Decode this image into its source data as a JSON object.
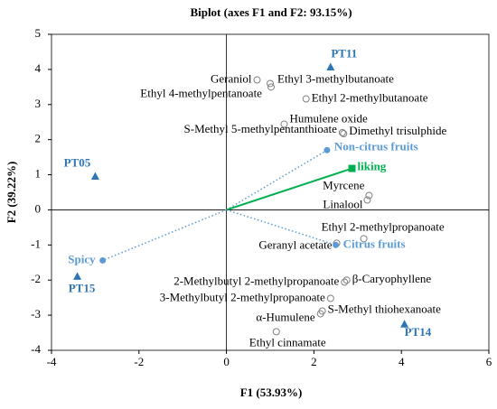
{
  "chart_data": {
    "type": "scatter",
    "title": "Biplot (axes F1 and F2: 93.15%)",
    "x_label": "F1 (53.93%)",
    "y_label": "F2 (39.22%)",
    "xlim": [
      -4,
      6
    ],
    "ylim": [
      -4,
      5
    ],
    "xticks": [
      -4,
      -2,
      0,
      2,
      4,
      6
    ],
    "yticks": [
      -4,
      -3,
      -2,
      -1,
      0,
      1,
      2,
      3,
      4,
      5
    ],
    "series": [
      {
        "marker": "open-circle",
        "color": "#808080",
        "label_color": "#000000",
        "labels": [
          "Geraniol",
          "Ethyl 3-methylbutanoate",
          "Ethyl 4-methylpentanoate",
          "Ethyl 2-methylbutanoate",
          "Humulene oxide",
          "S-Methyl 5-methylpentanthioate",
          "Dimethyl trisulphide",
          "Myrcene",
          "Linalool",
          "Ethyl 2-methylpropanoate",
          "Geranyl acetate",
          "2-Methylbutyl 2-methylpropanoate",
          "β-Caryophyllene",
          "3-Methylbutyl 2-methylpropanoate",
          "α-Humulene",
          "S-Methyl thiohexanoate",
          "Ethyl cinnamate"
        ],
        "x": [
          0.7,
          1.0,
          1.02,
          1.82,
          1.32,
          2.65,
          2.68,
          3.26,
          3.22,
          3.14,
          2.52,
          2.7,
          2.75,
          2.38,
          2.15,
          2.19,
          1.14
        ],
        "y": [
          3.7,
          3.6,
          3.5,
          3.16,
          2.44,
          2.2,
          2.17,
          0.41,
          0.28,
          -0.82,
          -0.95,
          -2.06,
          -2.0,
          -2.52,
          -2.96,
          -2.88,
          -3.47
        ]
      },
      {
        "marker": "triangle",
        "color": "#2e75b6",
        "label_color": "#2e75b6",
        "labels": [
          "PT11",
          "PT05",
          "PT15",
          "PT14"
        ],
        "x": [
          2.38,
          -3.0,
          -3.41,
          4.07
        ],
        "y": [
          4.06,
          0.95,
          -1.9,
          -3.26
        ]
      },
      {
        "marker": "circle",
        "vector": "dotted",
        "color": "#5b9bd5",
        "label_color": "#5b9bd5",
        "labels": [
          "Non-citrus fruits",
          "Citrus fruits",
          "Spicy"
        ],
        "x": [
          2.3,
          2.5,
          -2.83
        ],
        "y": [
          1.7,
          -1.0,
          -1.44
        ]
      },
      {
        "marker": "square",
        "vector": "solid",
        "color": "#00b050",
        "label_color": "#00b050",
        "labels": [
          "liking"
        ],
        "x": [
          2.87
        ],
        "y": [
          1.18
        ]
      }
    ]
  }
}
